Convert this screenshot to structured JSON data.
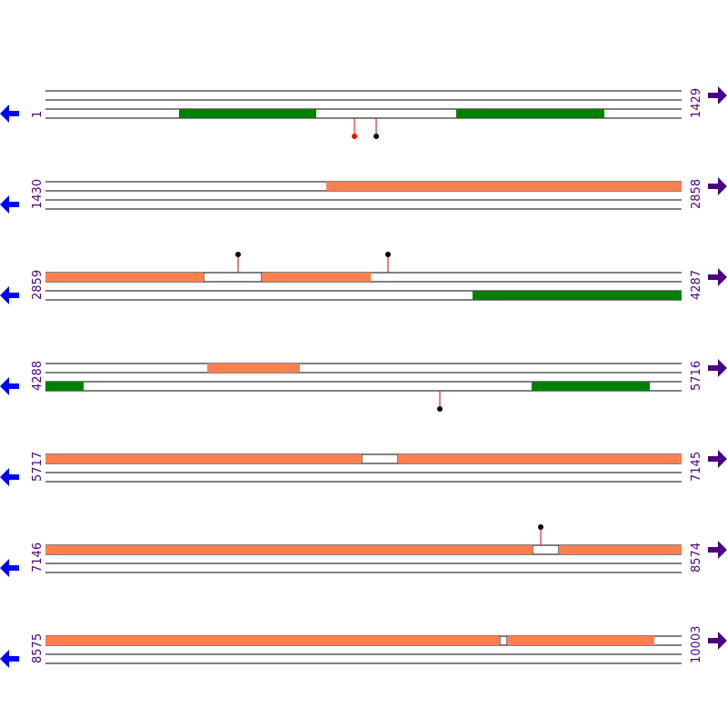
{
  "rows": [
    {
      "start": "1",
      "end": "1429"
    },
    {
      "start": "1430",
      "end": "2858"
    },
    {
      "start": "2859",
      "end": "4287"
    },
    {
      "start": "4288",
      "end": "5716"
    },
    {
      "start": "5717",
      "end": "7145"
    },
    {
      "start": "7146",
      "end": "8574"
    },
    {
      "start": "8575",
      "end": "10003"
    }
  ]
}
